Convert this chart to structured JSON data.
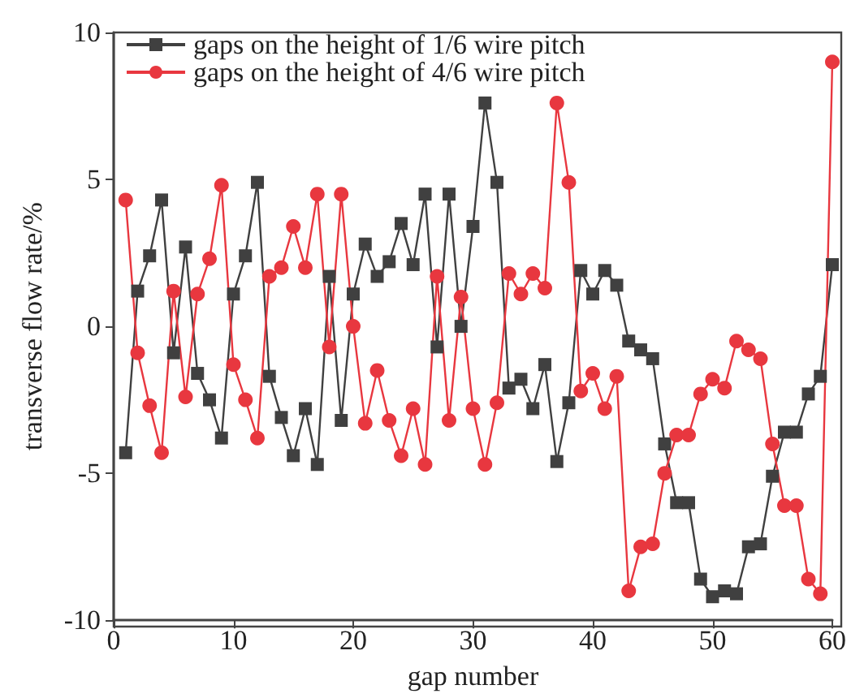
{
  "chart_data": {
    "type": "line",
    "xlabel": "gap number",
    "ylabel": "transverse flow rate/%",
    "x": [
      1,
      2,
      3,
      4,
      5,
      6,
      7,
      8,
      9,
      10,
      11,
      12,
      13,
      14,
      15,
      16,
      17,
      18,
      19,
      20,
      21,
      22,
      23,
      24,
      25,
      26,
      27,
      28,
      29,
      30,
      31,
      32,
      33,
      34,
      35,
      36,
      37,
      38,
      39,
      40,
      41,
      42,
      43,
      44,
      45,
      46,
      47,
      48,
      49,
      50,
      51,
      52,
      53,
      54,
      55,
      56,
      57,
      58,
      59,
      60
    ],
    "series": [
      {
        "name": "gaps on the height of 1/6 wire pitch",
        "color": "#404040",
        "marker": "square",
        "values": [
          -4.3,
          1.2,
          2.4,
          4.3,
          -0.9,
          2.7,
          -1.6,
          -2.5,
          -3.8,
          1.1,
          2.4,
          4.9,
          -1.7,
          -3.1,
          -4.4,
          -2.8,
          -4.7,
          1.7,
          -3.2,
          1.1,
          2.8,
          1.7,
          2.2,
          3.5,
          2.1,
          4.5,
          -0.7,
          4.5,
          0.0,
          3.4,
          7.6,
          4.9,
          -2.1,
          -1.8,
          -2.8,
          -1.3,
          -4.6,
          -2.6,
          1.9,
          1.1,
          1.9,
          1.4,
          -0.5,
          -0.8,
          -1.1,
          -4.0,
          -6.0,
          -6.0,
          -8.6,
          -9.2,
          -9.0,
          -9.1,
          -7.5,
          -7.4,
          -5.1,
          -3.6,
          -3.6,
          -2.3,
          -1.7,
          2.1
        ]
      },
      {
        "name": "gaps on the height of 4/6 wire pitch",
        "color": "#e8373f",
        "marker": "circle",
        "values": [
          4.3,
          -0.9,
          -2.7,
          -4.3,
          1.2,
          -2.4,
          1.1,
          2.3,
          4.8,
          -1.3,
          -2.5,
          -3.8,
          1.7,
          2.0,
          3.4,
          2.0,
          4.5,
          -0.7,
          4.5,
          0.0,
          -3.3,
          -1.5,
          -3.2,
          -4.4,
          -2.8,
          -4.7,
          1.7,
          -3.2,
          1.0,
          -2.8,
          -4.7,
          -2.6,
          1.8,
          1.1,
          1.8,
          1.3,
          7.6,
          4.9,
          -2.2,
          -1.6,
          -2.8,
          -1.7,
          -9.0,
          -7.5,
          -7.4,
          -5.0,
          -3.7,
          -3.7,
          -2.3,
          -1.8,
          -2.1,
          -0.5,
          -0.8,
          -1.1,
          -4.0,
          -6.1,
          -6.1,
          -8.6,
          -9.1,
          9.0
        ]
      }
    ],
    "xlim": [
      0,
      60
    ],
    "xticks": [
      0,
      10,
      20,
      30,
      40,
      50,
      60
    ],
    "ylim": [
      -10,
      10
    ],
    "yticks": [
      -10,
      -5,
      0,
      5,
      10
    ],
    "grid": false,
    "legend": "top left",
    "line_style": "solid"
  }
}
